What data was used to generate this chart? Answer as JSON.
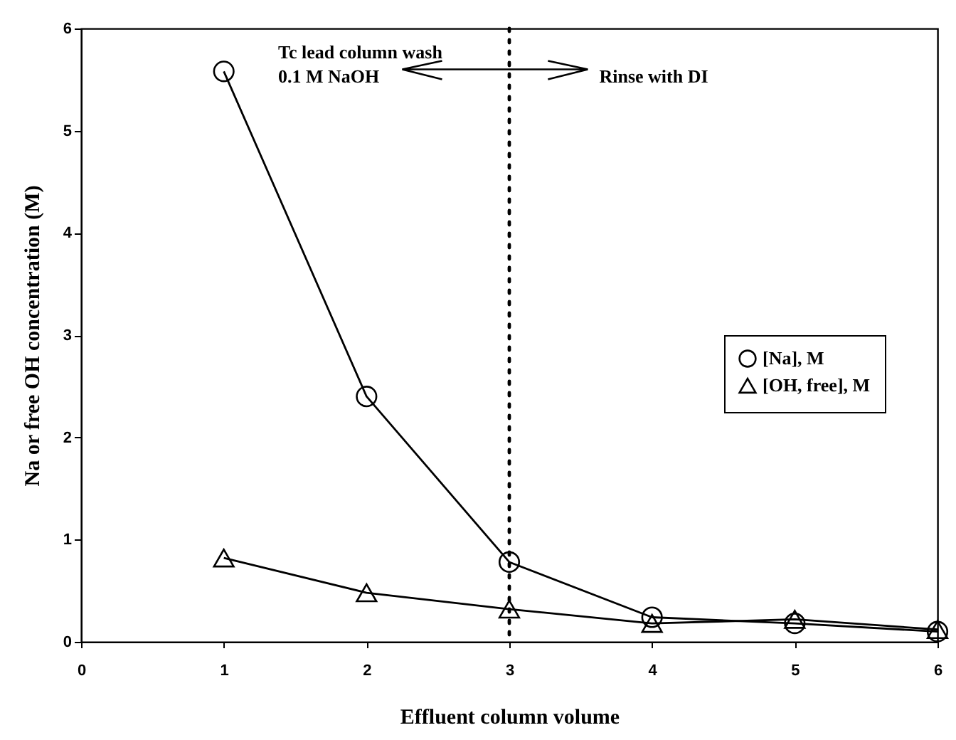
{
  "chart_data": {
    "type": "line",
    "xlabel": "Effluent column volume",
    "ylabel": "Na or free OH concentration (M)",
    "x": [
      1,
      2,
      3,
      4,
      5,
      6
    ],
    "series": [
      {
        "name": "[Na], M",
        "color": "#000000",
        "marker": "circle",
        "values": [
          5.58,
          2.4,
          0.78,
          0.24,
          0.18,
          0.1
        ]
      },
      {
        "name": "[OH, free], M",
        "color": "#000000",
        "marker": "triangle",
        "values": [
          0.82,
          0.48,
          0.32,
          0.18,
          0.22,
          0.12
        ]
      }
    ],
    "xlim": [
      0,
      6
    ],
    "xticks": [
      0,
      1,
      2,
      3,
      4,
      5,
      6
    ],
    "ylim": [
      0,
      6
    ],
    "yticks": [
      0,
      1,
      2,
      3,
      4,
      5,
      6
    ],
    "ref_lines": [
      {
        "axis": "x",
        "value": 3,
        "line_style": "dotted",
        "color": "#000000"
      }
    ],
    "annotations": [
      "Tc  lead column wash",
      "0.1 M NaOH",
      "Rinse with DI"
    ],
    "grid": false,
    "legend": "right",
    "line_style": "solid"
  }
}
